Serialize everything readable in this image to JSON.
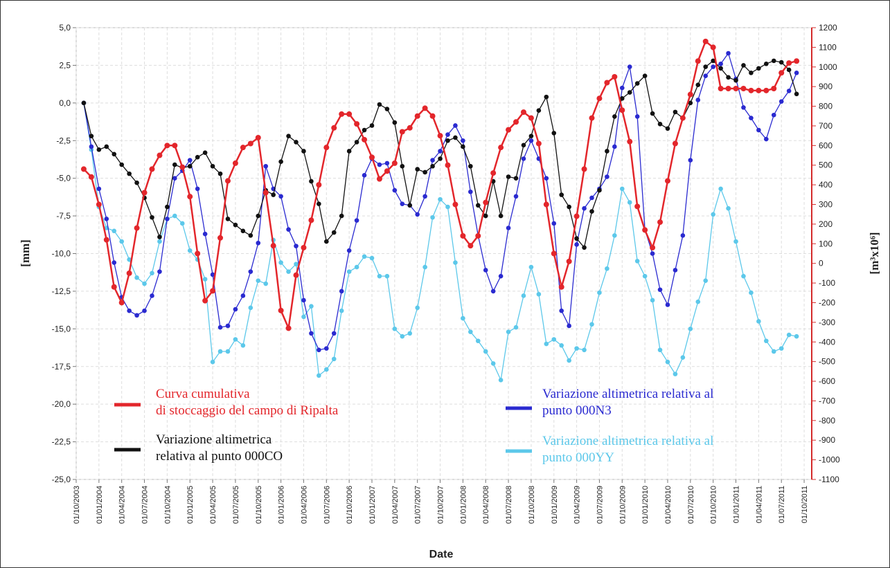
{
  "chart_data": {
    "type": "line",
    "x_label": "Date",
    "y_label": "[mm]",
    "y2_label": "[m³x10⁶]",
    "x": [
      "01/11/2003",
      "01/12/2003",
      "01/01/2004",
      "01/02/2004",
      "01/03/2004",
      "01/04/2004",
      "01/05/2004",
      "01/06/2004",
      "01/07/2004",
      "01/08/2004",
      "01/09/2004",
      "01/10/2004",
      "01/11/2004",
      "01/12/2004",
      "01/01/2005",
      "01/02/2005",
      "01/03/2005",
      "01/04/2005",
      "01/05/2005",
      "01/06/2005",
      "01/07/2005",
      "01/08/2005",
      "01/09/2005",
      "01/10/2005",
      "01/11/2005",
      "01/12/2005",
      "01/01/2006",
      "01/02/2006",
      "01/03/2006",
      "01/04/2006",
      "01/05/2006",
      "01/06/2006",
      "01/07/2006",
      "01/08/2006",
      "01/09/2006",
      "01/10/2006",
      "01/11/2006",
      "01/12/2006",
      "01/01/2007",
      "01/02/2007",
      "01/03/2007",
      "01/04/2007",
      "01/05/2007",
      "01/06/2007",
      "01/07/2007",
      "01/08/2007",
      "01/09/2007",
      "01/10/2007",
      "01/11/2007",
      "01/12/2007",
      "01/01/2008",
      "01/02/2008",
      "01/03/2008",
      "01/04/2008",
      "01/05/2008",
      "01/06/2008",
      "01/07/2008",
      "01/08/2008",
      "01/09/2008",
      "01/10/2008",
      "01/11/2008",
      "01/12/2008",
      "01/01/2009",
      "01/02/2009",
      "01/03/2009",
      "01/04/2009",
      "01/05/2009",
      "01/06/2009",
      "01/07/2009",
      "01/08/2009",
      "01/09/2009",
      "01/10/2009",
      "01/11/2009",
      "01/12/2009",
      "01/01/2010",
      "01/02/2010",
      "01/03/2010",
      "01/04/2010",
      "01/05/2010",
      "01/06/2010",
      "01/07/2010",
      "01/08/2010",
      "01/09/2010",
      "01/10/2010",
      "01/11/2010",
      "01/12/2010",
      "01/01/2011",
      "01/02/2011",
      "01/03/2011",
      "01/04/2011",
      "01/05/2011",
      "01/06/2011",
      "01/07/2011",
      "01/08/2011",
      "01/09/2011"
    ],
    "xlim": [
      "01/10/2003",
      "01/11/2011"
    ],
    "xticks": [
      "01/10/2003",
      "01/01/2004",
      "01/04/2004",
      "01/07/2004",
      "01/10/2004",
      "01/01/2005",
      "01/04/2005",
      "01/07/2005",
      "01/10/2005",
      "01/01/2006",
      "01/04/2006",
      "01/07/2006",
      "01/10/2006",
      "01/01/2007",
      "01/04/2007",
      "01/07/2007",
      "01/10/2007",
      "01/01/2008",
      "01/04/2008",
      "01/07/2008",
      "01/10/2008",
      "01/01/2009",
      "01/04/2009",
      "01/07/2009",
      "01/10/2009",
      "01/01/2010",
      "01/04/2010",
      "01/07/2010",
      "01/10/2010",
      "01/01/2011",
      "01/04/2011",
      "01/07/2011",
      "01/10/2011"
    ],
    "ylim": [
      -25,
      5
    ],
    "yticks": [
      {
        "value": -25,
        "label": "-25,0"
      },
      {
        "value": -22.5,
        "label": "-22,5"
      },
      {
        "value": -20,
        "label": "-20,0"
      },
      {
        "value": -17.5,
        "label": "-17,5"
      },
      {
        "value": -15,
        "label": "-15,0"
      },
      {
        "value": -12.5,
        "label": "-12,5"
      },
      {
        "value": -10,
        "label": "-10,0"
      },
      {
        "value": -7.5,
        "label": "-7,5"
      },
      {
        "value": -5,
        "label": "-5,0"
      },
      {
        "value": -2.5,
        "label": "-2,5"
      },
      {
        "value": 0,
        "label": "0,0"
      },
      {
        "value": 2.5,
        "label": "2,5"
      },
      {
        "value": 5,
        "label": "5,0"
      }
    ],
    "y2lim": [
      -1100,
      1200
    ],
    "y2ticks": [
      -1100,
      -1000,
      -900,
      -800,
      -700,
      -600,
      -500,
      -400,
      -300,
      -200,
      -100,
      0,
      100,
      200,
      300,
      400,
      500,
      600,
      700,
      800,
      900,
      1000,
      1100,
      1200
    ],
    "y2_color": "#d42a2a",
    "grid": true,
    "legend": true,
    "series": [
      {
        "name": "Curva cumulativa\ndi stoccaggio del campo di Ripalta",
        "color": "#e3262b",
        "axis": "y2",
        "values": [
          480,
          440,
          300,
          120,
          -120,
          -200,
          -50,
          180,
          360,
          480,
          550,
          600,
          600,
          490,
          340,
          50,
          -190,
          -140,
          130,
          420,
          510,
          590,
          610,
          640,
          360,
          90,
          -240,
          -330,
          -60,
          80,
          220,
          400,
          590,
          690,
          760,
          760,
          710,
          630,
          540,
          430,
          470,
          510,
          670,
          690,
          750,
          790,
          750,
          650,
          500,
          300,
          140,
          90,
          140,
          310,
          460,
          590,
          680,
          720,
          770,
          740,
          610,
          300,
          50,
          -120,
          10,
          240,
          480,
          740,
          840,
          920,
          950,
          780,
          620,
          290,
          170,
          80,
          210,
          420,
          610,
          740,
          860,
          1030,
          1130,
          1100,
          890,
          890,
          890,
          890,
          880,
          880,
          880,
          890,
          970,
          1020,
          1030
        ]
      },
      {
        "name": "Variazione altimetrica\nrelativa al punto 000CO",
        "color": "#111111",
        "values": [
          0.0,
          -2.2,
          -3.1,
          -2.9,
          -3.4,
          -4.1,
          -4.7,
          -5.3,
          -6.3,
          -7.6,
          -8.9,
          -6.9,
          -4.1,
          -4.3,
          -4.2,
          -3.6,
          -3.3,
          -4.2,
          -4.7,
          -7.7,
          -8.1,
          -8.5,
          -8.8,
          -7.5,
          -5.8,
          -6.1,
          -3.9,
          -2.2,
          -2.6,
          -3.2,
          -5.2,
          -6.7,
          -9.2,
          -8.6,
          -7.5,
          -3.2,
          -2.6,
          -1.8,
          -1.5,
          -0.1,
          -0.4,
          -1.3,
          -4.2,
          -6.8,
          -4.4,
          -4.6,
          -4.2,
          -3.7,
          -2.5,
          -2.3,
          -2.9,
          -4.2,
          -6.8,
          -7.5,
          -5.2,
          -7.5,
          -4.9,
          -5.0,
          -2.8,
          -2.2,
          -0.5,
          0.4,
          -2.0,
          -6.1,
          -6.9,
          -9.0,
          -9.6,
          -7.2,
          -5.8,
          -3.2,
          -0.9,
          0.3,
          0.7,
          1.3,
          1.8,
          -0.7,
          -1.4,
          -1.7,
          -0.6,
          -1.0,
          0.0,
          1.2,
          2.4,
          2.8,
          2.3,
          1.7,
          1.5,
          2.5,
          2.0,
          2.3,
          2.6,
          2.8,
          2.7,
          2.2,
          0.6
        ]
      },
      {
        "name": "Variazione altimetrica relativa al\npunto 000N3",
        "color": "#2a2ad0",
        "values": [
          0.0,
          -2.9,
          -5.7,
          -7.7,
          -10.6,
          -12.9,
          -13.8,
          -14.1,
          -13.8,
          -12.8,
          -11.2,
          -7.7,
          -5.0,
          -4.5,
          -3.8,
          -5.7,
          -8.7,
          -11.4,
          -14.9,
          -14.8,
          -13.7,
          -12.8,
          -11.2,
          -9.3,
          -4.2,
          -5.7,
          -6.2,
          -8.4,
          -9.5,
          -13.1,
          -15.3,
          -16.4,
          -16.3,
          -15.3,
          -12.5,
          -9.8,
          -7.8,
          -4.8,
          -3.7,
          -4.1,
          -4.0,
          -5.8,
          -6.7,
          -6.8,
          -7.4,
          -6.2,
          -3.8,
          -3.2,
          -2.1,
          -1.5,
          -2.5,
          -5.9,
          -8.8,
          -11.1,
          -12.5,
          -11.5,
          -8.3,
          -6.2,
          -3.7,
          -2.5,
          -3.7,
          -5.0,
          -8.0,
          -13.8,
          -14.8,
          -9.4,
          -7.0,
          -6.3,
          -5.7,
          -4.9,
          -2.9,
          1.0,
          2.4,
          -0.9,
          -8.4,
          -10.0,
          -12.4,
          -13.4,
          -11.1,
          -8.8,
          -3.8,
          0.2,
          1.8,
          2.4,
          2.6,
          3.3,
          1.6,
          -0.3,
          -1.0,
          -1.8,
          -2.4,
          -0.8,
          0.1,
          0.8,
          2.0
        ]
      },
      {
        "name": "Variazione altimetrica relativa al\npunto 000YY",
        "color": "#5cc8ea",
        "values": [
          0.0,
          -3.1,
          -6.9,
          -8.3,
          -8.5,
          -9.2,
          -10.4,
          -11.6,
          -12.0,
          -11.3,
          -9.2,
          -7.7,
          -7.5,
          -8.0,
          -9.8,
          -10.4,
          -11.7,
          -17.2,
          -16.5,
          -16.5,
          -15.7,
          -16.1,
          -13.6,
          -11.8,
          -12.0,
          -9.1,
          -10.6,
          -11.2,
          -10.7,
          -14.2,
          -13.5,
          -18.1,
          -17.7,
          -17.0,
          -13.8,
          -11.2,
          -10.9,
          -10.2,
          -10.3,
          -11.5,
          -11.5,
          -15.0,
          -15.5,
          -15.3,
          -13.6,
          -10.9,
          -7.6,
          -6.4,
          -6.9,
          -10.6,
          -14.3,
          -15.2,
          -15.8,
          -16.5,
          -17.3,
          -18.4,
          -15.2,
          -14.9,
          -12.8,
          -10.9,
          -12.7,
          -16.0,
          -15.7,
          -16.1,
          -17.1,
          -16.3,
          -16.4,
          -14.7,
          -12.6,
          -11.0,
          -8.8,
          -5.7,
          -6.6,
          -10.5,
          -11.5,
          -13.1,
          -16.4,
          -17.2,
          -18.0,
          -16.9,
          -15.0,
          -13.2,
          -11.8,
          -7.4,
          -5.7,
          -7.0,
          -9.2,
          -11.5,
          -12.6,
          -14.5,
          -15.8,
          -16.5,
          -16.3,
          -15.4,
          -15.5
        ]
      }
    ]
  }
}
